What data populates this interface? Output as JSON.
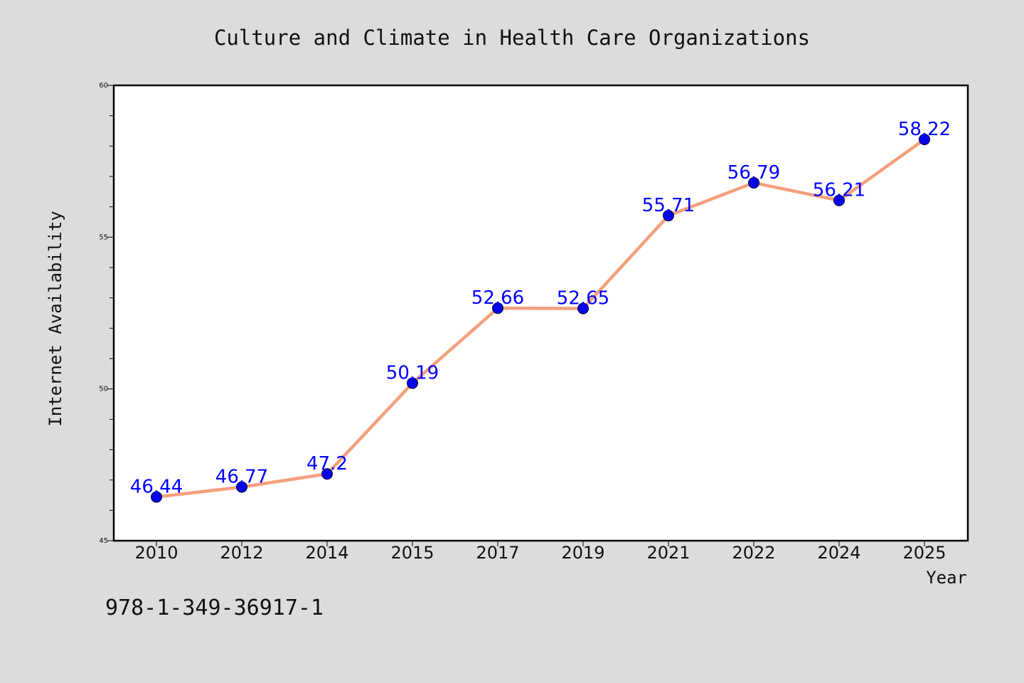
{
  "isbn_text": "978-1-349-36917-1",
  "chart_data": {
    "type": "line",
    "title": "Culture and Climate in Health Care Organizations",
    "xlabel": "Year",
    "ylabel": "Internet Availability",
    "categories": [
      "2010",
      "2012",
      "2014",
      "2015",
      "2017",
      "2019",
      "2021",
      "2022",
      "2024",
      "2025"
    ],
    "values": [
      46.44,
      46.77,
      47.2,
      50.19,
      52.66,
      52.65,
      55.71,
      56.79,
      56.21,
      58.22
    ],
    "data_labels": [
      "46.44",
      "46.77",
      "47.2",
      "50.19",
      "52.66",
      "52.65",
      "55.71",
      "56.79",
      "56.21",
      "58.22"
    ],
    "ylim": [
      45,
      60
    ],
    "y_major_ticks": [
      45,
      50,
      55,
      60
    ],
    "y_minor_step": 1,
    "grid": false,
    "line_color": "#f4a07c",
    "marker_color": "#0000ee",
    "label_color": "#0000ff"
  }
}
